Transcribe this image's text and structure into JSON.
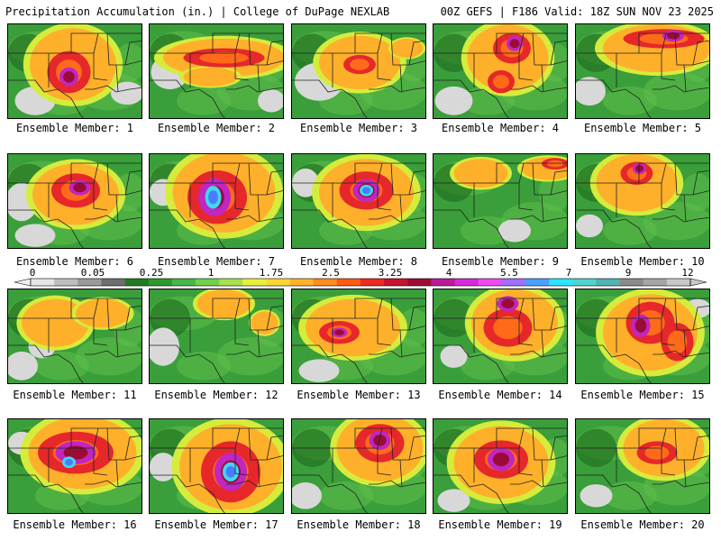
{
  "header": {
    "title": "Precipitation Accumulation (in.) | College of DuPage NEXLAB",
    "run_info": "00Z GEFS | F186 Valid: 18Z SUN NOV 23 2025"
  },
  "colorbar": {
    "tick_labels": [
      "0",
      "0.05",
      "0.25",
      "1",
      "1.75",
      "2.5",
      "3.25",
      "4",
      "5.5",
      "7",
      "9",
      "12"
    ],
    "colors": [
      "#e6e6e6",
      "#bebebe",
      "#9a9a9a",
      "#6e6e6e",
      "#1f7d1f",
      "#2e9a2e",
      "#45b845",
      "#71d24a",
      "#a6e14e",
      "#e9f03b",
      "#ffd732",
      "#ffb32a",
      "#ff8c1e",
      "#ff5a14",
      "#f02a1e",
      "#c8142d",
      "#9e0c34",
      "#ba1a9a",
      "#d82ad8",
      "#f04af0",
      "#a070ff",
      "#4aa0ff",
      "#28e6ff",
      "#50d2d2",
      "#50b4b4",
      "#8a8a8a",
      "#a5a5a5",
      "#c8c8c8"
    ]
  },
  "members": [
    {
      "label": "Ensemble Member: 1",
      "blobs": [
        [
          0.48,
          0.42,
          0.32,
          0.38,
          1
        ],
        [
          0.45,
          0.5,
          0.16,
          0.22,
          2
        ],
        [
          0.45,
          0.55,
          0.07,
          0.1,
          3
        ],
        [
          0.2,
          0.8,
          0.15,
          0.15,
          -1
        ],
        [
          0.88,
          0.72,
          0.12,
          0.12,
          -1
        ]
      ]
    },
    {
      "label": "Ensemble Member: 2",
      "blobs": [
        [
          0.55,
          0.35,
          0.45,
          0.2,
          1
        ],
        [
          0.55,
          0.35,
          0.3,
          0.1,
          2
        ],
        [
          0.45,
          0.55,
          0.2,
          0.1,
          1
        ],
        [
          0.15,
          0.5,
          0.14,
          0.18,
          -1
        ],
        [
          0.9,
          0.8,
          0.1,
          0.12,
          -1
        ]
      ]
    },
    {
      "label": "Ensemble Member: 3",
      "blobs": [
        [
          0.5,
          0.4,
          0.3,
          0.28,
          1
        ],
        [
          0.5,
          0.42,
          0.12,
          0.1,
          2
        ],
        [
          0.2,
          0.6,
          0.18,
          0.2,
          -1
        ],
        [
          0.85,
          0.25,
          0.12,
          0.1,
          1
        ]
      ]
    },
    {
      "label": "Ensemble Member: 4",
      "blobs": [
        [
          0.55,
          0.35,
          0.3,
          0.35,
          1
        ],
        [
          0.58,
          0.25,
          0.14,
          0.16,
          2
        ],
        [
          0.6,
          0.2,
          0.06,
          0.08,
          3
        ],
        [
          0.5,
          0.6,
          0.1,
          0.12,
          2
        ],
        [
          0.15,
          0.8,
          0.14,
          0.15,
          -1
        ]
      ]
    },
    {
      "label": "Ensemble Member: 5",
      "blobs": [
        [
          0.6,
          0.25,
          0.4,
          0.25,
          1
        ],
        [
          0.65,
          0.15,
          0.3,
          0.1,
          2
        ],
        [
          0.72,
          0.12,
          0.08,
          0.06,
          3
        ],
        [
          0.1,
          0.7,
          0.12,
          0.15,
          -1
        ]
      ]
    },
    {
      "label": "Ensemble Member: 6",
      "blobs": [
        [
          0.5,
          0.42,
          0.32,
          0.32,
          1
        ],
        [
          0.5,
          0.38,
          0.18,
          0.18,
          2
        ],
        [
          0.53,
          0.35,
          0.08,
          0.08,
          3
        ],
        [
          0.1,
          0.5,
          0.12,
          0.2,
          -1
        ],
        [
          0.2,
          0.85,
          0.15,
          0.12,
          -1
        ]
      ]
    },
    {
      "label": "Ensemble Member: 7",
      "blobs": [
        [
          0.55,
          0.4,
          0.38,
          0.42,
          1
        ],
        [
          0.5,
          0.45,
          0.22,
          0.28,
          2
        ],
        [
          0.48,
          0.45,
          0.12,
          0.2,
          3
        ],
        [
          0.47,
          0.45,
          0.06,
          0.12,
          4
        ],
        [
          0.1,
          0.4,
          0.1,
          0.14,
          -1
        ]
      ]
    },
    {
      "label": "Ensemble Member: 8",
      "blobs": [
        [
          0.55,
          0.4,
          0.35,
          0.35,
          1
        ],
        [
          0.55,
          0.38,
          0.2,
          0.2,
          2
        ],
        [
          0.55,
          0.38,
          0.1,
          0.12,
          3
        ],
        [
          0.55,
          0.38,
          0.05,
          0.06,
          4
        ],
        [
          0.1,
          0.3,
          0.1,
          0.15,
          -1
        ]
      ]
    },
    {
      "label": "Ensemble Member: 9",
      "blobs": [
        [
          0.85,
          0.15,
          0.2,
          0.12,
          1
        ],
        [
          0.9,
          0.1,
          0.1,
          0.06,
          2
        ],
        [
          0.35,
          0.2,
          0.2,
          0.15,
          1
        ],
        [
          0.6,
          0.8,
          0.12,
          0.12,
          -1
        ]
      ]
    },
    {
      "label": "Ensemble Member: 10",
      "blobs": [
        [
          0.45,
          0.3,
          0.3,
          0.3,
          1
        ],
        [
          0.45,
          0.2,
          0.12,
          0.12,
          2
        ],
        [
          0.47,
          0.15,
          0.05,
          0.06,
          3
        ],
        [
          0.1,
          0.75,
          0.1,
          0.12,
          -1
        ]
      ]
    },
    {
      "label": "Ensemble Member: 11",
      "blobs": [
        [
          0.35,
          0.35,
          0.25,
          0.25,
          1
        ],
        [
          0.7,
          0.25,
          0.2,
          0.15,
          1
        ],
        [
          0.1,
          0.8,
          0.12,
          0.15,
          -1
        ],
        [
          0.25,
          0.6,
          0.1,
          0.12,
          -1
        ]
      ]
    },
    {
      "label": "Ensemble Member: 12",
      "blobs": [
        [
          0.55,
          0.15,
          0.2,
          0.15,
          1
        ],
        [
          0.1,
          0.6,
          0.12,
          0.2,
          -1
        ],
        [
          0.85,
          0.35,
          0.1,
          0.12,
          1
        ]
      ]
    },
    {
      "label": "Ensemble Member: 13",
      "blobs": [
        [
          0.45,
          0.4,
          0.35,
          0.3,
          1
        ],
        [
          0.35,
          0.45,
          0.15,
          0.12,
          2
        ],
        [
          0.35,
          0.45,
          0.06,
          0.05,
          3
        ],
        [
          0.2,
          0.85,
          0.15,
          0.12,
          -1
        ]
      ]
    },
    {
      "label": "Ensemble Member: 14",
      "blobs": [
        [
          0.6,
          0.35,
          0.32,
          0.35,
          1
        ],
        [
          0.55,
          0.4,
          0.18,
          0.2,
          2
        ],
        [
          0.55,
          0.15,
          0.08,
          0.08,
          3
        ],
        [
          0.15,
          0.7,
          0.1,
          0.12,
          -1
        ]
      ]
    },
    {
      "label": "Ensemble Member: 15",
      "blobs": [
        [
          0.55,
          0.45,
          0.35,
          0.4,
          1
        ],
        [
          0.55,
          0.35,
          0.18,
          0.22,
          2
        ],
        [
          0.48,
          0.38,
          0.07,
          0.12,
          3
        ],
        [
          0.75,
          0.55,
          0.12,
          0.2,
          2
        ],
        [
          0.9,
          0.2,
          0.1,
          0.1,
          -1
        ]
      ]
    },
    {
      "label": "Ensemble Member: 16",
      "blobs": [
        [
          0.55,
          0.35,
          0.4,
          0.38,
          1
        ],
        [
          0.5,
          0.35,
          0.28,
          0.22,
          2
        ],
        [
          0.5,
          0.35,
          0.15,
          0.12,
          3
        ],
        [
          0.45,
          0.45,
          0.05,
          0.06,
          4
        ],
        [
          0.1,
          0.25,
          0.1,
          0.12,
          -1
        ]
      ]
    },
    {
      "label": "Ensemble Member: 17",
      "blobs": [
        [
          0.6,
          0.5,
          0.38,
          0.45,
          1
        ],
        [
          0.6,
          0.55,
          0.22,
          0.32,
          2
        ],
        [
          0.6,
          0.55,
          0.12,
          0.2,
          3
        ],
        [
          0.6,
          0.55,
          0.06,
          0.1,
          4
        ],
        [
          0.1,
          0.5,
          0.1,
          0.15,
          -1
        ]
      ]
    },
    {
      "label": "Ensemble Member: 18",
      "blobs": [
        [
          0.65,
          0.3,
          0.32,
          0.35,
          1
        ],
        [
          0.65,
          0.25,
          0.18,
          0.2,
          2
        ],
        [
          0.65,
          0.22,
          0.08,
          0.1,
          3
        ],
        [
          0.1,
          0.8,
          0.12,
          0.14,
          -1
        ]
      ]
    },
    {
      "label": "Ensemble Member: 19",
      "blobs": [
        [
          0.5,
          0.45,
          0.35,
          0.38,
          1
        ],
        [
          0.5,
          0.42,
          0.2,
          0.2,
          2
        ],
        [
          0.5,
          0.42,
          0.1,
          0.12,
          3
        ],
        [
          0.15,
          0.85,
          0.12,
          0.12,
          -1
        ]
      ]
    },
    {
      "label": "Ensemble Member: 20",
      "blobs": [
        [
          0.65,
          0.3,
          0.3,
          0.3,
          1
        ],
        [
          0.6,
          0.35,
          0.15,
          0.12,
          2
        ],
        [
          0.15,
          0.8,
          0.12,
          0.12,
          -1
        ]
      ]
    }
  ]
}
